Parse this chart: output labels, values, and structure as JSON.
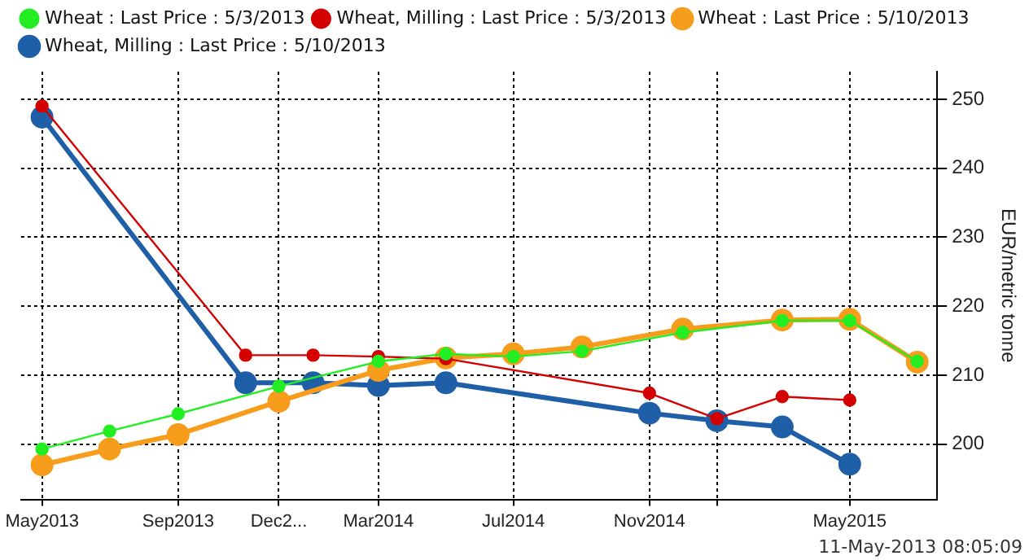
{
  "chart_data": {
    "type": "line",
    "ylabel": "EUR/metric tonne",
    "x": [
      "2013-05",
      "2013-07",
      "2013-09",
      "2013-12",
      "2014-03",
      "2014-05",
      "2014-07",
      "2014-09",
      "2014-12",
      "2015-03",
      "2015-05",
      "2015-07"
    ],
    "series": [
      {
        "name": "Wheat : Last Price : 5/10/2013",
        "color": "#f89c1c",
        "values": [
          197.0,
          199.3,
          201.4,
          206.2,
          210.7,
          212.5,
          213.1,
          214.1,
          216.7,
          218.0,
          218.1,
          211.9
        ]
      },
      {
        "name": "Wheat : Last Price : 5/3/2013",
        "color": "#22ee22",
        "values": [
          199.3,
          201.9,
          204.4,
          208.4,
          212.0,
          213.1,
          212.7,
          213.5,
          216.2,
          217.9,
          217.9,
          212.0
        ]
      },
      {
        "name": "Wheat, Milling : Last Price : 5/10/2013",
        "color": "#1f5fa8",
        "x": [
          "2013-05",
          "2013-11",
          "2014-01",
          "2014-03",
          "2014-05",
          "2014-11",
          "2015-01",
          "2015-03",
          "2015-05"
        ],
        "values": [
          247.4,
          208.9,
          208.9,
          208.5,
          208.9,
          204.5,
          203.4,
          202.5,
          197.1
        ]
      },
      {
        "name": "Wheat, Milling : Last Price : 5/3/2013",
        "color": "#d40000",
        "x": [
          "2013-05",
          "2013-11",
          "2014-01",
          "2014-03",
          "2014-05",
          "2014-11",
          "2015-01",
          "2015-03",
          "2015-05"
        ],
        "values": [
          249.0,
          212.9,
          212.9,
          212.7,
          212.4,
          207.4,
          203.7,
          206.9,
          206.4
        ]
      }
    ],
    "xlim": [
      "2013-04-12",
      "2015-07-19"
    ],
    "xticks": [
      {
        "value": "2013-05",
        "label": "May2013"
      },
      {
        "value": "2013-09",
        "label": "Sep2013"
      },
      {
        "value": "2013-12",
        "label": "Dec2..."
      },
      {
        "value": "2014-03",
        "label": "Mar2014"
      },
      {
        "value": "2014-07",
        "label": "Jul2014"
      },
      {
        "value": "2014-11",
        "label": "Nov2014"
      },
      {
        "value": "2015-01",
        "label": null
      },
      {
        "value": "2015-05",
        "label": "May2015"
      }
    ],
    "ylim": [
      192,
      254
    ],
    "yticks": [
      200,
      210,
      220,
      230,
      240,
      250
    ],
    "grid": true,
    "legend": "top left",
    "marker": "circle",
    "line_style": "solid",
    "annotations": [
      "11-May-2013 08:05:09"
    ]
  }
}
